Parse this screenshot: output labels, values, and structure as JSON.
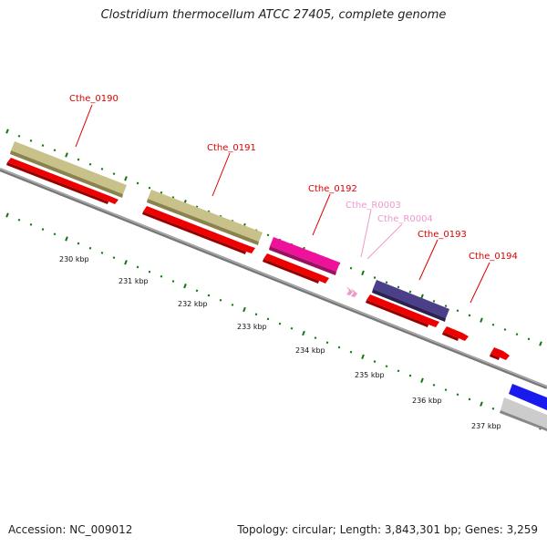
{
  "title": "Clostridium thermocellum ATCC 27405, complete genome",
  "footer": {
    "accession": "Accession: NC_009012",
    "summary": "Topology: circular; Length: 3,843,301 bp; Genes: 3,259"
  },
  "colors": {
    "backbone": "#888888",
    "cds": "#ee0000",
    "cog_tan": "#c8c28a",
    "cog_pink": "#ee1199",
    "cog_purple": "#4b3f8a",
    "cog_blue": "#1a1aee",
    "cog_gray": "#bbbbbb",
    "rna": "#ee99cc",
    "tick": "#117711",
    "gene_label": "#dd0000",
    "rna_label": "#ee99cc"
  },
  "gene_labels": [
    {
      "name": "Cthe_0190",
      "kind": "gene"
    },
    {
      "name": "Cthe_0191",
      "kind": "gene"
    },
    {
      "name": "Cthe_0192",
      "kind": "gene"
    },
    {
      "name": "Cthe_R0003",
      "kind": "rna"
    },
    {
      "name": "Cthe_R0004",
      "kind": "rna"
    },
    {
      "name": "Cthe_0193",
      "kind": "gene"
    },
    {
      "name": "Cthe_0194",
      "kind": "gene"
    }
  ],
  "kbp_labels": [
    "230 kbp",
    "231 kbp",
    "232 kbp",
    "233 kbp",
    "234 kbp",
    "235 kbp",
    "236 kbp",
    "237 kbp"
  ]
}
